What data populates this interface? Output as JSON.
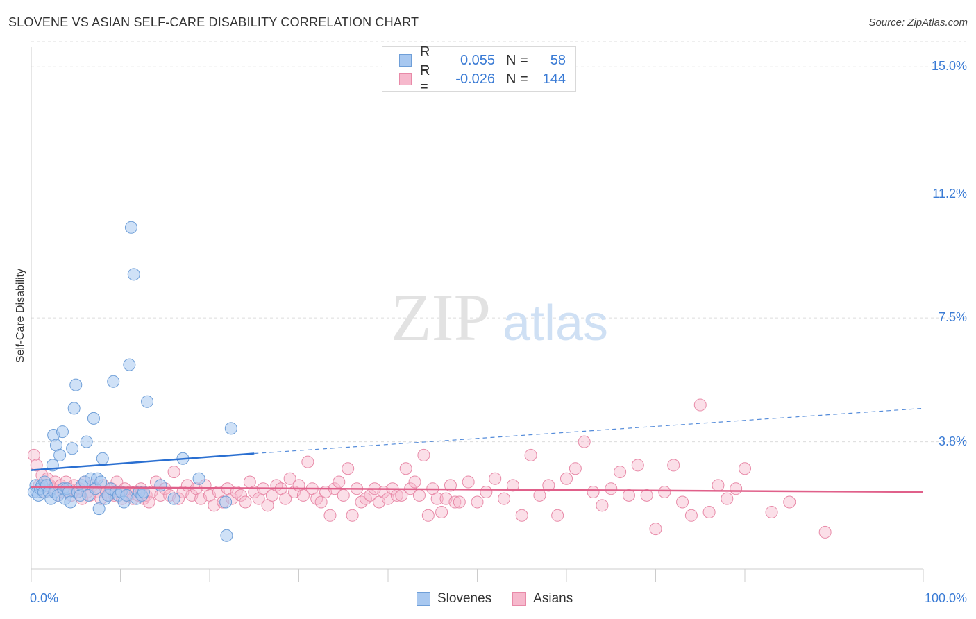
{
  "title": "SLOVENE VS ASIAN SELF-CARE DISABILITY CORRELATION CHART",
  "source": "Source: ZipAtlas.com",
  "watermark": {
    "zip": "ZIP",
    "atlas": "atlas"
  },
  "colors": {
    "blue_fill": "#a8c8f0",
    "blue_stroke": "#6f9fd8",
    "blue_line": "#2a6fd1",
    "pink_fill": "#f6b8cc",
    "pink_stroke": "#e88aa8",
    "pink_line": "#e0608a",
    "accent": "#3a7bd5"
  },
  "legend_top": {
    "rows": [
      {
        "r_label": "R =",
        "r_value": "0.055",
        "n_label": "N =",
        "n_value": "58"
      },
      {
        "r_label": "R =",
        "r_value": "-0.026",
        "n_label": "N =",
        "n_value": "144"
      }
    ]
  },
  "legend_bottom": {
    "series1": "Slovenes",
    "series2": "Asians"
  },
  "chart_data": {
    "type": "scatter",
    "title": "SLOVENE VS ASIAN SELF-CARE DISABILITY CORRELATION CHART",
    "xlabel": "",
    "ylabel": "Self-Care Disability",
    "xlim": [
      0,
      100
    ],
    "ylim": [
      0,
      15.75
    ],
    "x_tick_labels": [
      "0.0%",
      "100.0%"
    ],
    "y_ticks": [
      3.8,
      7.5,
      11.2,
      15.0
    ],
    "y_tick_labels": [
      "3.8%",
      "7.5%",
      "11.2%",
      "15.0%"
    ],
    "grid": true,
    "legend_position": "top-center",
    "series": [
      {
        "name": "Slovenes",
        "R": 0.055,
        "N": 58,
        "trend": {
          "x": [
            0,
            25
          ],
          "y": [
            2.95,
            3.45
          ],
          "dashed_to": [
            100,
            4.8
          ]
        },
        "points": [
          [
            0.3,
            2.3
          ],
          [
            0.5,
            2.5
          ],
          [
            0.6,
            2.3
          ],
          [
            0.8,
            2.2
          ],
          [
            1.0,
            2.4
          ],
          [
            1.2,
            2.5
          ],
          [
            1.4,
            2.3
          ],
          [
            1.5,
            2.6
          ],
          [
            1.7,
            2.5
          ],
          [
            2.0,
            2.3
          ],
          [
            2.2,
            2.1
          ],
          [
            2.4,
            3.1
          ],
          [
            2.5,
            4.0
          ],
          [
            2.6,
            2.3
          ],
          [
            2.8,
            3.7
          ],
          [
            3.0,
            2.2
          ],
          [
            3.2,
            3.4
          ],
          [
            3.5,
            4.1
          ],
          [
            3.6,
            2.4
          ],
          [
            3.8,
            2.1
          ],
          [
            4.0,
            2.4
          ],
          [
            4.2,
            2.3
          ],
          [
            4.4,
            2.0
          ],
          [
            4.6,
            3.6
          ],
          [
            4.8,
            4.8
          ],
          [
            5.0,
            5.5
          ],
          [
            5.2,
            2.3
          ],
          [
            5.5,
            2.2
          ],
          [
            5.7,
            2.5
          ],
          [
            6.0,
            2.6
          ],
          [
            6.2,
            3.8
          ],
          [
            6.4,
            2.2
          ],
          [
            6.7,
            2.7
          ],
          [
            7.0,
            4.5
          ],
          [
            7.2,
            2.4
          ],
          [
            7.4,
            2.7
          ],
          [
            7.6,
            1.8
          ],
          [
            7.8,
            2.6
          ],
          [
            8.0,
            3.3
          ],
          [
            8.3,
            2.1
          ],
          [
            8.6,
            2.2
          ],
          [
            8.9,
            2.4
          ],
          [
            9.2,
            5.6
          ],
          [
            9.5,
            2.3
          ],
          [
            9.8,
            2.2
          ],
          [
            10.1,
            2.3
          ],
          [
            10.4,
            2.0
          ],
          [
            10.7,
            2.2
          ],
          [
            11.0,
            6.1
          ],
          [
            11.2,
            10.2
          ],
          [
            11.5,
            8.8
          ],
          [
            11.8,
            2.1
          ],
          [
            12.1,
            2.3
          ],
          [
            12.4,
            2.2
          ],
          [
            12.6,
            2.3
          ],
          [
            13.0,
            5.0
          ],
          [
            14.5,
            2.5
          ],
          [
            16.0,
            2.1
          ],
          [
            17.0,
            3.3
          ],
          [
            18.8,
            2.7
          ],
          [
            22.4,
            4.2
          ],
          [
            21.8,
            2.0
          ],
          [
            21.9,
            1.0
          ]
        ]
      },
      {
        "name": "Asians",
        "R": -0.026,
        "N": 144,
        "trend": {
          "x": [
            0,
            100
          ],
          "y": [
            2.45,
            2.3
          ]
        },
        "points": [
          [
            0.3,
            3.4
          ],
          [
            0.6,
            3.1
          ],
          [
            0.9,
            2.5
          ],
          [
            1.2,
            2.8
          ],
          [
            1.5,
            2.3
          ],
          [
            1.8,
            2.7
          ],
          [
            2.1,
            2.5
          ],
          [
            2.4,
            2.4
          ],
          [
            2.7,
            2.6
          ],
          [
            3.0,
            2.2
          ],
          [
            3.3,
            2.5
          ],
          [
            3.6,
            2.3
          ],
          [
            3.9,
            2.6
          ],
          [
            4.2,
            2.4
          ],
          [
            4.5,
            2.2
          ],
          [
            4.8,
            2.5
          ],
          [
            5.1,
            2.3
          ],
          [
            5.4,
            2.4
          ],
          [
            5.7,
            2.1
          ],
          [
            6.0,
            2.6
          ],
          [
            6.3,
            2.3
          ],
          [
            6.6,
            2.2
          ],
          [
            6.9,
            2.5
          ],
          [
            7.2,
            2.4
          ],
          [
            7.5,
            2.3
          ],
          [
            7.8,
            2.1
          ],
          [
            8.1,
            2.5
          ],
          [
            8.4,
            2.3
          ],
          [
            8.7,
            2.2
          ],
          [
            9.0,
            2.4
          ],
          [
            9.3,
            2.2
          ],
          [
            9.6,
            2.6
          ],
          [
            9.9,
            2.3
          ],
          [
            10.2,
            2.1
          ],
          [
            10.5,
            2.4
          ],
          [
            10.8,
            2.2
          ],
          [
            11.1,
            2.3
          ],
          [
            11.4,
            2.1
          ],
          [
            11.7,
            2.3
          ],
          [
            12.0,
            2.2
          ],
          [
            12.3,
            2.4
          ],
          [
            12.6,
            2.1
          ],
          [
            12.9,
            2.2
          ],
          [
            13.2,
            2.0
          ],
          [
            13.5,
            2.3
          ],
          [
            14.0,
            2.6
          ],
          [
            14.5,
            2.2
          ],
          [
            15.0,
            2.4
          ],
          [
            15.5,
            2.2
          ],
          [
            16.0,
            2.9
          ],
          [
            16.5,
            2.1
          ],
          [
            17.0,
            2.3
          ],
          [
            17.5,
            2.5
          ],
          [
            18.0,
            2.2
          ],
          [
            18.5,
            2.4
          ],
          [
            19.0,
            2.1
          ],
          [
            19.5,
            2.5
          ],
          [
            20.0,
            2.2
          ],
          [
            20.5,
            1.9
          ],
          [
            21.0,
            2.3
          ],
          [
            21.5,
            2.0
          ],
          [
            22.0,
            2.4
          ],
          [
            22.5,
            2.1
          ],
          [
            23.0,
            2.3
          ],
          [
            23.5,
            2.2
          ],
          [
            24.0,
            2.0
          ],
          [
            24.5,
            2.6
          ],
          [
            25.0,
            2.3
          ],
          [
            25.5,
            2.1
          ],
          [
            26.0,
            2.4
          ],
          [
            26.5,
            1.9
          ],
          [
            27.0,
            2.2
          ],
          [
            27.5,
            2.5
          ],
          [
            28.0,
            2.4
          ],
          [
            28.5,
            2.1
          ],
          [
            29.0,
            2.7
          ],
          [
            29.5,
            2.3
          ],
          [
            30.0,
            2.5
          ],
          [
            30.5,
            2.2
          ],
          [
            31.0,
            3.2
          ],
          [
            31.5,
            2.4
          ],
          [
            32.0,
            2.1
          ],
          [
            32.5,
            2.0
          ],
          [
            33.0,
            2.3
          ],
          [
            33.5,
            1.6
          ],
          [
            34.0,
            2.4
          ],
          [
            34.5,
            2.6
          ],
          [
            35.0,
            2.2
          ],
          [
            35.5,
            3.0
          ],
          [
            36.0,
            1.6
          ],
          [
            36.5,
            2.4
          ],
          [
            37.0,
            2.0
          ],
          [
            37.5,
            2.1
          ],
          [
            38.0,
            2.2
          ],
          [
            38.5,
            2.4
          ],
          [
            39.0,
            2.0
          ],
          [
            39.5,
            2.3
          ],
          [
            40.0,
            2.1
          ],
          [
            40.5,
            2.4
          ],
          [
            41.0,
            2.2
          ],
          [
            41.5,
            2.2
          ],
          [
            42.0,
            3.0
          ],
          [
            42.5,
            2.4
          ],
          [
            43.0,
            2.6
          ],
          [
            43.5,
            2.2
          ],
          [
            44.0,
            3.4
          ],
          [
            44.5,
            1.6
          ],
          [
            45.0,
            2.4
          ],
          [
            45.5,
            2.1
          ],
          [
            46.0,
            1.7
          ],
          [
            46.5,
            2.1
          ],
          [
            47.0,
            2.5
          ],
          [
            47.5,
            2.0
          ],
          [
            48.0,
            2.0
          ],
          [
            49.0,
            2.6
          ],
          [
            50.0,
            2.0
          ],
          [
            51.0,
            2.3
          ],
          [
            52.0,
            2.7
          ],
          [
            53.0,
            2.1
          ],
          [
            54.0,
            2.5
          ],
          [
            55.0,
            1.6
          ],
          [
            56.0,
            3.4
          ],
          [
            57.0,
            2.2
          ],
          [
            58.0,
            2.5
          ],
          [
            59.0,
            1.6
          ],
          [
            60.0,
            2.7
          ],
          [
            61.0,
            3.0
          ],
          [
            62.0,
            3.8
          ],
          [
            63.0,
            2.3
          ],
          [
            64.0,
            1.9
          ],
          [
            65.0,
            2.4
          ],
          [
            66.0,
            2.9
          ],
          [
            67.0,
            2.2
          ],
          [
            68.0,
            3.1
          ],
          [
            69.0,
            2.2
          ],
          [
            70.0,
            1.2
          ],
          [
            71.0,
            2.3
          ],
          [
            72.0,
            3.1
          ],
          [
            73.0,
            2.0
          ],
          [
            74.0,
            1.6
          ],
          [
            75.0,
            4.9
          ],
          [
            76.0,
            1.7
          ],
          [
            77.0,
            2.5
          ],
          [
            78.0,
            2.1
          ],
          [
            79.0,
            2.4
          ],
          [
            80.0,
            3.0
          ],
          [
            83.0,
            1.7
          ],
          [
            85.0,
            2.0
          ],
          [
            89.0,
            1.1
          ]
        ]
      }
    ]
  }
}
